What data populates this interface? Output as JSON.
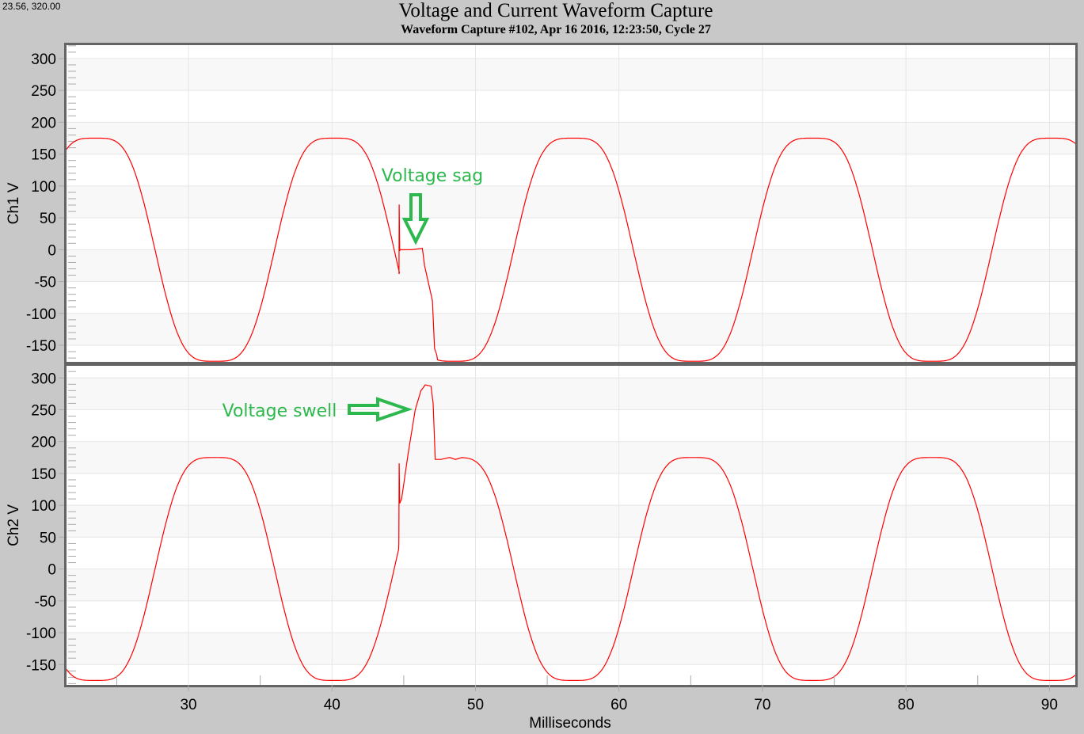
{
  "cursor_readout": "23.56, 320.00",
  "chart_data": [
    {
      "type": "line",
      "title": "Voltage and Current Waveform Capture",
      "subtitle": "Waveform Capture #102, Apr 16 2016, 12:23:50,  Cycle 27",
      "ylabel": "Ch1 V",
      "xlabel": "Milliseconds",
      "xlim": [
        21.5,
        91.8
      ],
      "ylim": [
        -176,
        321
      ],
      "yticks": [
        300,
        250,
        200,
        150,
        100,
        50,
        0,
        -50,
        -100,
        -150
      ],
      "xticks": [
        30,
        40,
        50,
        60,
        70,
        80,
        90
      ],
      "grid": true,
      "series": [
        {
          "name": "Ch1",
          "color": "#ff0000",
          "model": {
            "amplitude": 175,
            "frequency_hz": 60,
            "peak_time_ms": 23.5,
            "invert": false
          },
          "disturbance": {
            "start_ms": 44.7,
            "end_ms": 47.3,
            "points": [
              [
                44.67,
                -38
              ],
              [
                44.68,
                71
              ],
              [
                44.72,
                -2
              ],
              [
                44.75,
                0
              ],
              [
                45.5,
                0
              ],
              [
                46.3,
                2
              ],
              [
                46.45,
                -25
              ],
              [
                46.8,
                -60
              ],
              [
                47.0,
                -80
              ],
              [
                47.15,
                -155
              ],
              [
                47.3,
                -165
              ]
            ]
          }
        }
      ],
      "annotation": {
        "text": "Voltage sag",
        "arrow": "down",
        "at": [
          46.1,
          5
        ]
      }
    },
    {
      "type": "line",
      "ylabel": "Ch2 V",
      "xlabel": "Milliseconds",
      "xlim": [
        21.5,
        91.8
      ],
      "ylim": [
        -182,
        319
      ],
      "yticks": [
        300,
        250,
        200,
        150,
        100,
        50,
        0,
        -50,
        -100,
        -150
      ],
      "xticks": [
        30,
        40,
        50,
        60,
        70,
        80,
        90
      ],
      "xtick_labels": [
        "30",
        "40",
        "50",
        "60",
        "70",
        "80",
        "90"
      ],
      "grid": true,
      "series": [
        {
          "name": "Ch2",
          "color": "#ff0000",
          "model": {
            "amplitude": 175,
            "frequency_hz": 60,
            "peak_time_ms": 23.5,
            "invert": true
          },
          "disturbance": {
            "start_ms": 44.67,
            "end_ms": 49.0,
            "points": [
              [
                44.66,
                40
              ],
              [
                44.68,
                166
              ],
              [
                44.72,
                103
              ],
              [
                44.85,
                110
              ],
              [
                45.3,
                180
              ],
              [
                45.8,
                250
              ],
              [
                46.2,
                280
              ],
              [
                46.5,
                289
              ],
              [
                46.9,
                287
              ],
              [
                47.05,
                260
              ],
              [
                47.2,
                172
              ],
              [
                47.6,
                172
              ],
              [
                48.2,
                175
              ],
              [
                48.6,
                172
              ]
            ]
          }
        }
      ],
      "annotation": {
        "text": "Voltage swell",
        "arrow": "right",
        "at": [
          45.4,
          250
        ]
      }
    }
  ]
}
